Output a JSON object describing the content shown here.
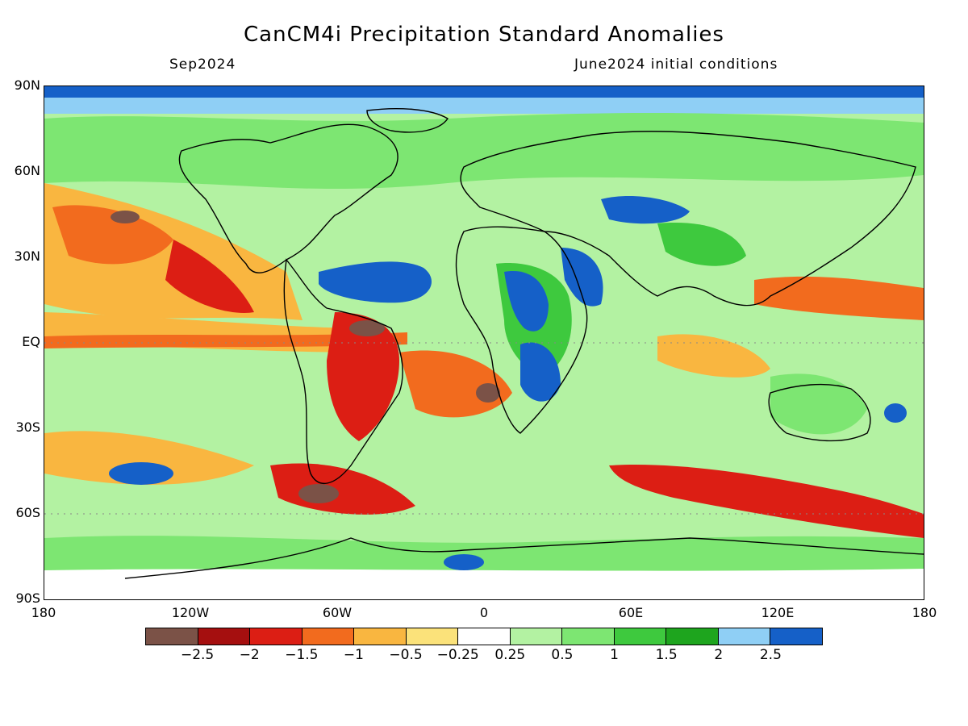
{
  "header": {
    "title": "CanCM4i Precipitation Standard Anomalies",
    "valid_month": "Sep2024",
    "initial_conditions": "June2024 initial conditions"
  },
  "axes": {
    "lat_labels": [
      "90N",
      "60N",
      "30N",
      "EQ",
      "30S",
      "60S",
      "90S"
    ],
    "lon_labels": [
      "180",
      "120W",
      "60W",
      "0",
      "60E",
      "120E",
      "180"
    ]
  },
  "legend": {
    "colors": [
      "#7b5247",
      "#a50f0f",
      "#dc1e14",
      "#f26b1e",
      "#f9b640",
      "#fbe27a",
      "#ffffff",
      "#b3f2a2",
      "#7de672",
      "#3ec93e",
      "#1ea51e",
      "#8fcff5",
      "#1560c8"
    ],
    "tick_labels": [
      "−2.5",
      "−2",
      "−1.5",
      "−1",
      "−0.5",
      "−0.25",
      "0.25",
      "0.5",
      "1",
      "1.5",
      "2",
      "2.5"
    ]
  },
  "colors": {
    "background": "#ffffff",
    "coastline": "#000000",
    "dry_extreme": "#7b5247",
    "wet_extreme": "#1560c8"
  }
}
